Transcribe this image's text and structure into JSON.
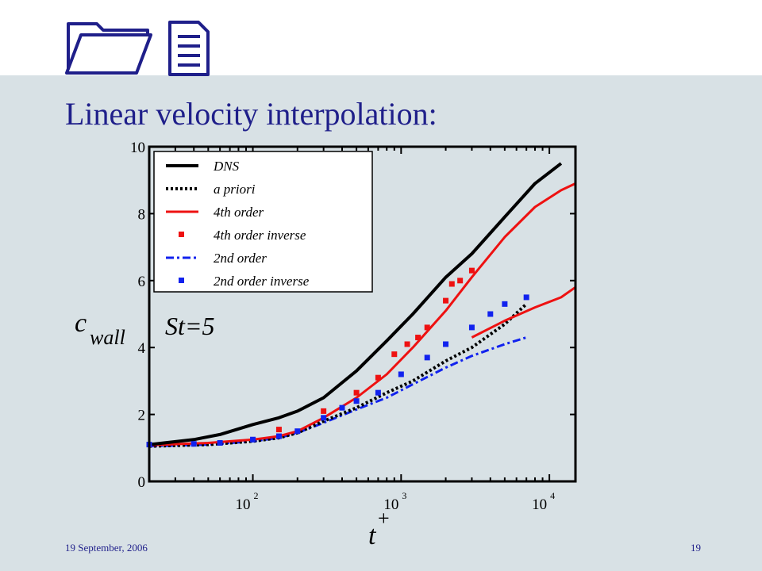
{
  "slide": {
    "title": "Linear velocity interpolation:",
    "footer_date": "19 September, 2006",
    "page_number": "19",
    "logo_icons": [
      "folder-icon",
      "document-icon"
    ]
  },
  "colors": {
    "title": "#1f1f8a",
    "background": "#d8e1e5",
    "DNS": "#000000",
    "a_priori": "#000000",
    "4th_order": "#ee1111",
    "4th_order_inverse": "#ee1111",
    "2nd_order": "#1122ee",
    "2nd_order_inverse": "#1122ee"
  },
  "chart_data": {
    "type": "line",
    "x_scale": "log",
    "xlim": [
      20,
      15000
    ],
    "ylim": [
      0,
      10
    ],
    "y_ticks": [
      "0",
      "2",
      "4",
      "6",
      "8",
      "10"
    ],
    "x_ticks": [
      {
        "base": "10",
        "exp": "2"
      },
      {
        "base": "10",
        "exp": "3"
      },
      {
        "base": "10",
        "exp": "4"
      }
    ],
    "xlabel": {
      "main": "t",
      "sup": "+"
    },
    "ylabel": {
      "main": "c",
      "sub": "wall"
    },
    "annotation": "St=5",
    "legend_position": "top-left",
    "series": [
      {
        "name": "DNS",
        "style": "solid",
        "points": [
          [
            20,
            1.1
          ],
          [
            40,
            1.25
          ],
          [
            60,
            1.4
          ],
          [
            100,
            1.7
          ],
          [
            150,
            1.9
          ],
          [
            200,
            2.1
          ],
          [
            300,
            2.5
          ],
          [
            500,
            3.3
          ],
          [
            800,
            4.2
          ],
          [
            1200,
            5.0
          ],
          [
            2000,
            6.1
          ],
          [
            3000,
            6.8
          ],
          [
            5000,
            7.9
          ],
          [
            8000,
            8.9
          ],
          [
            12000,
            9.5
          ]
        ]
      },
      {
        "name": "a priori",
        "style": "dotted",
        "points": [
          [
            20,
            1.05
          ],
          [
            50,
            1.1
          ],
          [
            100,
            1.2
          ],
          [
            150,
            1.3
          ],
          [
            200,
            1.45
          ],
          [
            300,
            1.8
          ],
          [
            500,
            2.2
          ],
          [
            800,
            2.65
          ],
          [
            1200,
            3.0
          ],
          [
            2000,
            3.6
          ],
          [
            3000,
            4.0
          ],
          [
            5000,
            4.7
          ],
          [
            7000,
            5.3
          ]
        ]
      },
      {
        "name": "4th order",
        "style": "solid",
        "points": [
          [
            20,
            1.08
          ],
          [
            50,
            1.15
          ],
          [
            100,
            1.25
          ],
          [
            150,
            1.35
          ],
          [
            200,
            1.5
          ],
          [
            300,
            1.9
          ],
          [
            500,
            2.5
          ],
          [
            800,
            3.2
          ],
          [
            1200,
            4.0
          ],
          [
            2000,
            5.1
          ],
          [
            3000,
            6.1
          ],
          [
            5000,
            7.3
          ],
          [
            8000,
            8.2
          ],
          [
            12000,
            8.7
          ],
          [
            15000,
            8.9
          ]
        ]
      },
      {
        "name": "4th order inverse",
        "style": "markers",
        "points": [
          [
            150,
            1.55
          ],
          [
            300,
            2.1
          ],
          [
            500,
            2.65
          ],
          [
            700,
            3.1
          ],
          [
            900,
            3.8
          ],
          [
            1100,
            4.1
          ],
          [
            1300,
            4.3
          ],
          [
            1500,
            4.6
          ],
          [
            2000,
            5.4
          ],
          [
            2200,
            5.9
          ],
          [
            2500,
            6.0
          ],
          [
            3000,
            6.3
          ]
        ]
      },
      {
        "name": "2nd order",
        "style": "dashdot",
        "points": [
          [
            20,
            1.05
          ],
          [
            50,
            1.1
          ],
          [
            100,
            1.2
          ],
          [
            150,
            1.3
          ],
          [
            200,
            1.45
          ],
          [
            300,
            1.75
          ],
          [
            500,
            2.15
          ],
          [
            800,
            2.5
          ],
          [
            1200,
            2.9
          ],
          [
            2000,
            3.4
          ],
          [
            3000,
            3.75
          ],
          [
            5000,
            4.1
          ],
          [
            7000,
            4.3
          ]
        ]
      },
      {
        "name": "2nd order inverse",
        "style": "markers",
        "points": [
          [
            20,
            1.1
          ],
          [
            40,
            1.12
          ],
          [
            60,
            1.15
          ],
          [
            100,
            1.25
          ],
          [
            150,
            1.35
          ],
          [
            200,
            1.5
          ],
          [
            300,
            1.9
          ],
          [
            400,
            2.2
          ],
          [
            500,
            2.4
          ],
          [
            700,
            2.65
          ],
          [
            1000,
            3.2
          ],
          [
            1500,
            3.7
          ],
          [
            2000,
            4.1
          ],
          [
            3000,
            4.6
          ],
          [
            4000,
            5.0
          ],
          [
            5000,
            5.3
          ],
          [
            7000,
            5.5
          ]
        ]
      },
      {
        "name": "",
        "style": "solid-red-lower",
        "points": [
          [
            3000,
            4.3
          ],
          [
            5000,
            4.8
          ],
          [
            8000,
            5.2
          ],
          [
            12000,
            5.5
          ],
          [
            15000,
            5.8
          ]
        ]
      }
    ]
  }
}
